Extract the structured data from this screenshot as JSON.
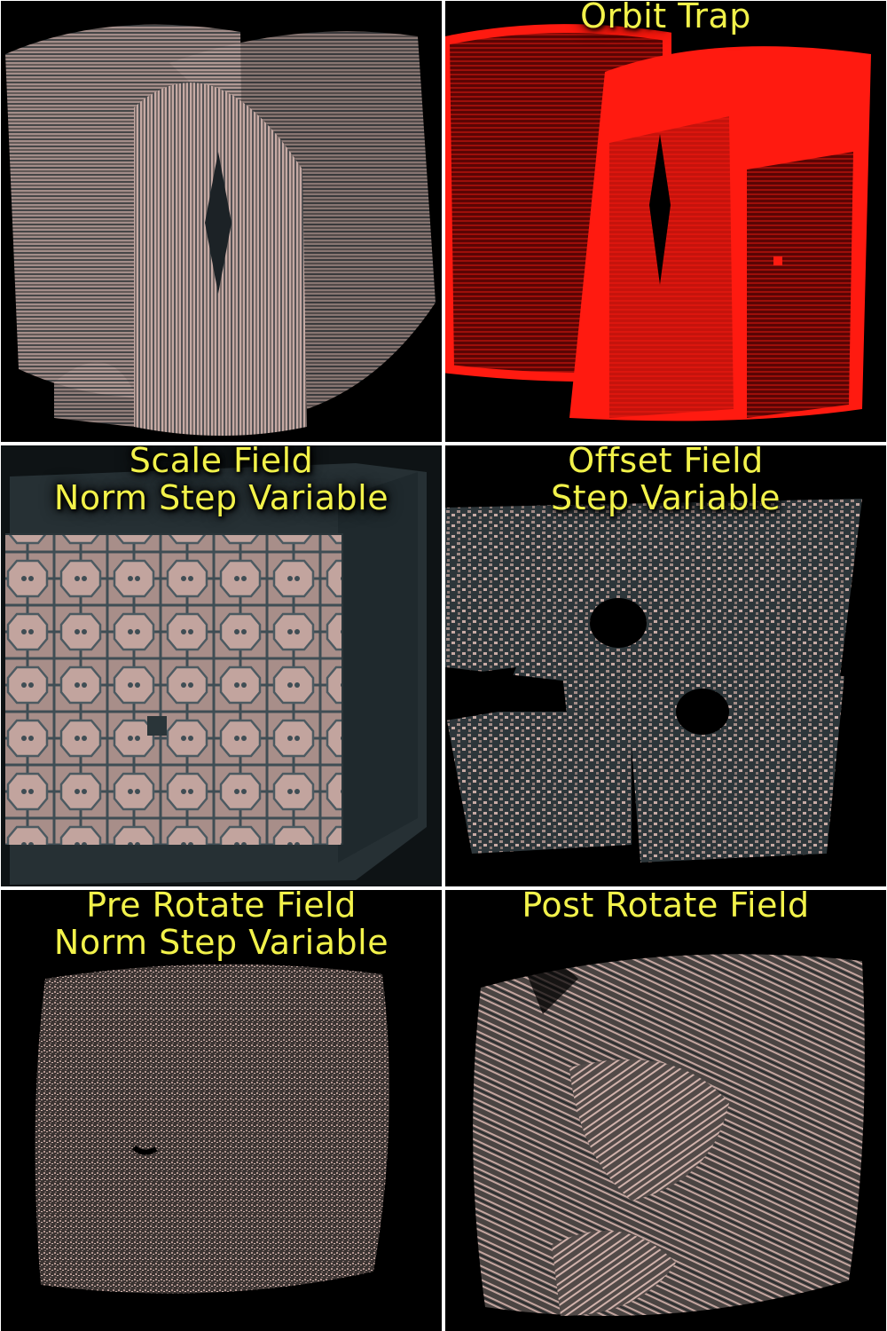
{
  "panels": [
    {
      "id": "base",
      "lines": []
    },
    {
      "id": "orbit-trap",
      "lines": [
        "Orbit Trap"
      ]
    },
    {
      "id": "scale-field",
      "lines": [
        "Scale Field",
        "Norm Step Variable"
      ]
    },
    {
      "id": "offset-field",
      "lines": [
        "Offset Field",
        "Step Variable"
      ]
    },
    {
      "id": "pre-rotate-field",
      "lines": [
        "Pre Rotate Field",
        "Norm Step Variable"
      ]
    },
    {
      "id": "post-rotate-field",
      "lines": [
        "Post Rotate Field"
      ]
    }
  ],
  "colors": {
    "background": "#000000",
    "divider": "#ffffff",
    "caption": "#f2f24a",
    "surface": "#c9a8a2",
    "shadow": "#3b4a52",
    "orbit_trap": "#ff1a10"
  }
}
